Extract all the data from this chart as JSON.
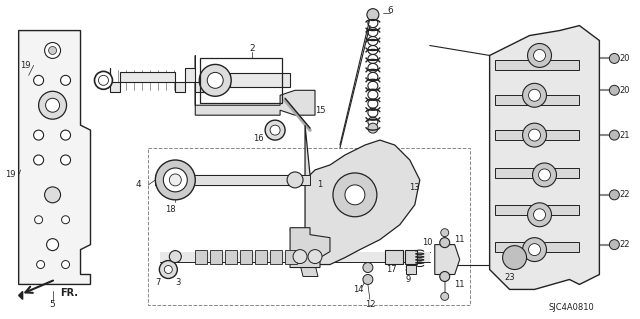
{
  "fig_width": 6.4,
  "fig_height": 3.19,
  "dpi": 100,
  "bg_color": "#ffffff",
  "line_color": "#222222",
  "diagram_code": "SJC4A0810",
  "fr_label": "FR."
}
